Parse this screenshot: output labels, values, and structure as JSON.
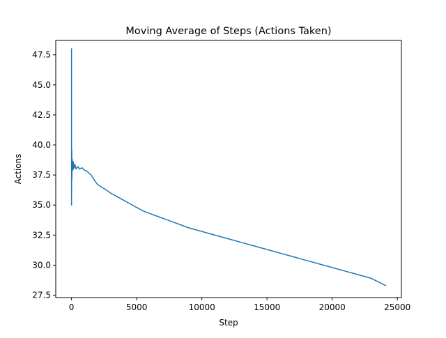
{
  "chart_data": {
    "type": "line",
    "title": "Moving Average of Steps (Actions Taken)",
    "xlabel": "Step",
    "ylabel": "Actions",
    "xlim": [
      -1210,
      25310
    ],
    "ylim": [
      27.3,
      48.7
    ],
    "xticks": [
      0,
      5000,
      10000,
      15000,
      20000,
      25000
    ],
    "xtick_labels": [
      "0",
      "5000",
      "10000",
      "15000",
      "20000",
      "25000"
    ],
    "yticks": [
      27.5,
      30.0,
      32.5,
      35.0,
      37.5,
      40.0,
      42.5,
      45.0,
      47.5
    ],
    "ytick_labels": [
      "27.5",
      "30.0",
      "32.5",
      "35.0",
      "37.5",
      "40.0",
      "42.5",
      "45.0",
      "47.5"
    ],
    "grid": false,
    "legend": "none",
    "series": [
      {
        "color": "#1f77b4",
        "x": [
          0,
          1,
          3,
          6,
          10,
          15,
          20,
          25,
          30,
          40,
          50,
          60,
          70,
          80,
          90,
          100,
          120,
          140,
          160,
          180,
          200,
          250,
          300,
          350,
          400,
          500,
          600,
          800,
          1000,
          1200,
          1500,
          1800,
          2000,
          2300,
          2600,
          3000,
          3500,
          4000,
          4500,
          5000,
          5500,
          6000,
          6500,
          7000,
          8000,
          9000,
          10000,
          11000,
          12000,
          13000,
          14000,
          15000,
          16000,
          17000,
          18000,
          19000,
          20000,
          21000,
          22000,
          23000,
          24100
        ],
        "y": [
          48.0,
          35.0,
          39.5,
          36.0,
          38.8,
          37.0,
          39.6,
          38.2,
          37.2,
          38.4,
          38.0,
          38.8,
          38.2,
          38.5,
          37.9,
          38.3,
          38.1,
          38.6,
          38.0,
          38.3,
          38.1,
          38.4,
          38.2,
          38.0,
          38.1,
          38.2,
          38.0,
          38.1,
          37.9,
          37.8,
          37.5,
          37.0,
          36.7,
          36.5,
          36.3,
          36.0,
          35.7,
          35.4,
          35.1,
          34.8,
          34.5,
          34.3,
          34.1,
          33.9,
          33.5,
          33.1,
          32.8,
          32.5,
          32.2,
          31.9,
          31.6,
          31.3,
          31.0,
          30.7,
          30.4,
          30.1,
          29.8,
          29.5,
          29.2,
          28.9,
          28.3
        ]
      }
    ]
  }
}
